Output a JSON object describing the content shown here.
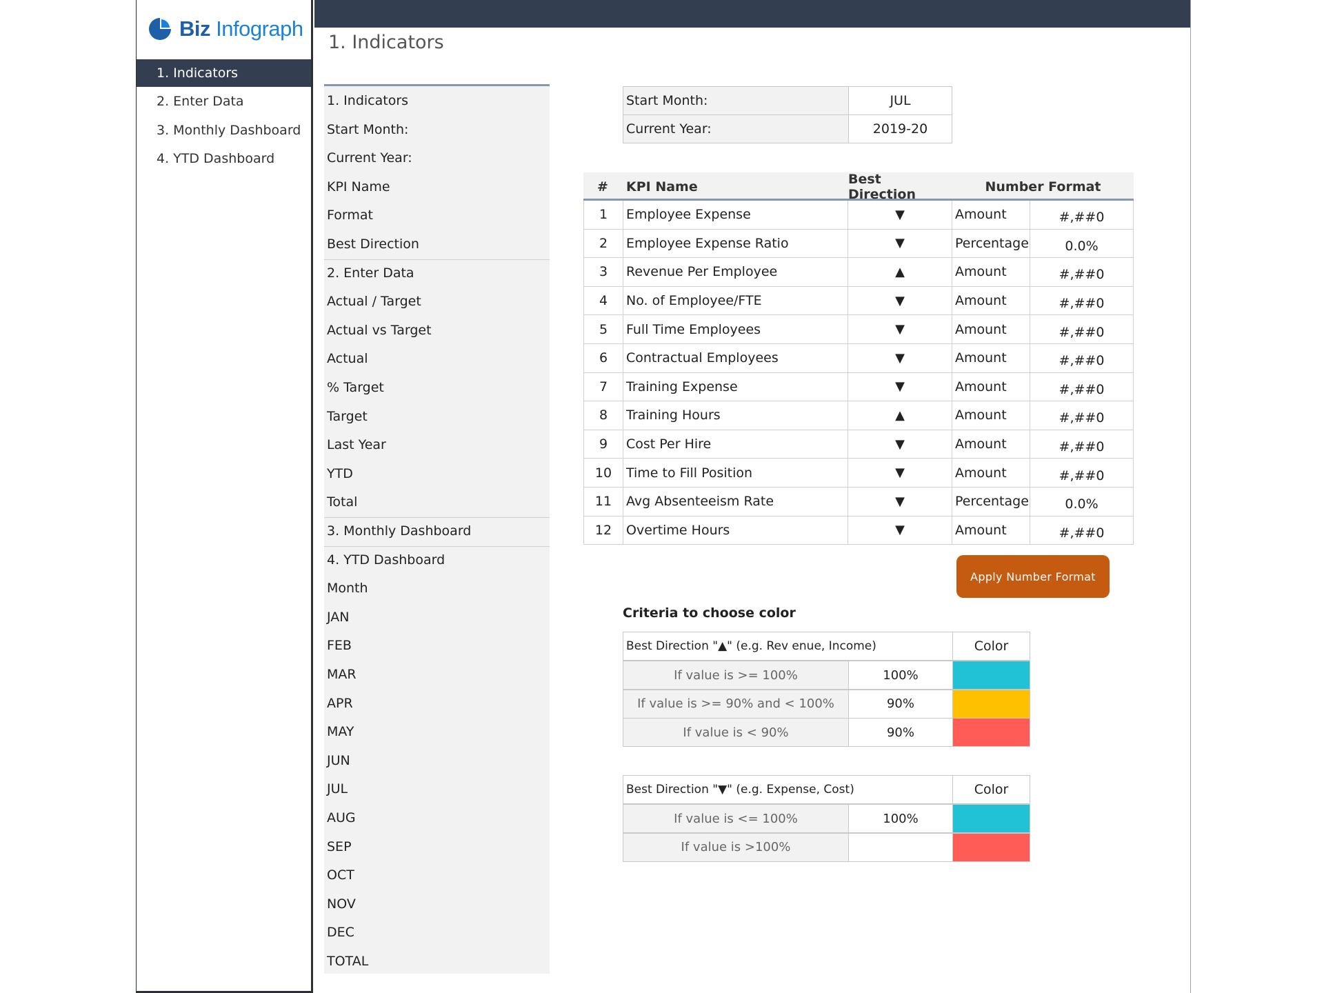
{
  "brand": {
    "part1": "Biz",
    "part2": "Infograph"
  },
  "nav": [
    {
      "label": "1. Indicators",
      "active": true
    },
    {
      "label": "2. Enter Data",
      "active": false
    },
    {
      "label": "3. Monthly Dashboard",
      "active": false
    },
    {
      "label": "4. YTD Dashboard",
      "active": false
    }
  ],
  "page_title": "1. Indicators",
  "index_list": [
    "1. Indicators",
    "Start Month:",
    "Current Year:",
    "KPI Name",
    "Format",
    "Best Direction",
    "2. Enter Data",
    "Actual / Target",
    "Actual vs Target",
    "Actual",
    "% Target",
    "Target",
    "Last Year",
    "YTD",
    "Total",
    "3. Monthly Dashboard",
    "4. YTD Dashboard",
    "Month",
    "JAN",
    "FEB",
    "MAR",
    "APR",
    "MAY",
    "JUN",
    "JUL",
    "AUG",
    "SEP",
    "OCT",
    "NOV",
    "DEC",
    "TOTAL"
  ],
  "settings": {
    "start_month_label": "Start Month:",
    "start_month_value": "JUL",
    "current_year_label": "Current Year:",
    "current_year_value": "2019-20"
  },
  "kpi_table": {
    "headers": {
      "num": "#",
      "name": "KPI Name",
      "direction": "Best Direction",
      "format": "Number Format"
    },
    "rows": [
      {
        "n": "1",
        "name": "Employee Expense",
        "dir": "▼",
        "type": "Amount",
        "fmt": "#,##0"
      },
      {
        "n": "2",
        "name": "Employee Expense Ratio",
        "dir": "▼",
        "type": "Percentage",
        "fmt": "0.0%"
      },
      {
        "n": "3",
        "name": "Revenue Per Employee",
        "dir": "▲",
        "type": "Amount",
        "fmt": "#,##0"
      },
      {
        "n": "4",
        "name": "No. of Employee/FTE",
        "dir": "▼",
        "type": "Amount",
        "fmt": "#,##0"
      },
      {
        "n": "5",
        "name": "Full Time Employees",
        "dir": "▼",
        "type": "Amount",
        "fmt": "#,##0"
      },
      {
        "n": "6",
        "name": "Contractual Employees",
        "dir": "▼",
        "type": "Amount",
        "fmt": "#,##0"
      },
      {
        "n": "7",
        "name": "Training Expense",
        "dir": "▼",
        "type": "Amount",
        "fmt": "#,##0"
      },
      {
        "n": "8",
        "name": "Training Hours",
        "dir": "▲",
        "type": "Amount",
        "fmt": "#,##0"
      },
      {
        "n": "9",
        "name": "Cost Per Hire",
        "dir": "▼",
        "type": "Amount",
        "fmt": "#,##0"
      },
      {
        "n": "10",
        "name": "Time to Fill Position",
        "dir": "▼",
        "type": "Amount",
        "fmt": "#,##0"
      },
      {
        "n": "11",
        "name": "Avg Absenteeism Rate",
        "dir": "▼",
        "type": "Percentage",
        "fmt": "0.0%"
      },
      {
        "n": "12",
        "name": "Overtime Hours",
        "dir": "▼",
        "type": "Amount",
        "fmt": "#,##0"
      }
    ]
  },
  "apply_button": "Apply Number Format",
  "criteria": {
    "title": "Criteria to choose color",
    "color_header": "Color",
    "up": {
      "header": "Best Direction \"▲\" (e.g. Rev enue, Income)",
      "rows": [
        {
          "cond": "If value is >= 100%",
          "pct": "100%",
          "color": "#21c2d6"
        },
        {
          "cond": "If value is >= 90% and < 100%",
          "pct": "90%",
          "color": "#ffc000"
        },
        {
          "cond": "If value is < 90%",
          "pct": "90%",
          "color": "#ff5b57"
        }
      ]
    },
    "down": {
      "header": "Best Direction \"▼\" (e.g. Expense, Cost)",
      "rows": [
        {
          "cond": "If value is <= 100%",
          "pct": "100%",
          "color": "#21c2d6"
        },
        {
          "cond": "If value is >100%",
          "pct": "",
          "color": "#ff5b57"
        }
      ]
    }
  },
  "colors": {
    "header_bg": "#333f50",
    "button": "#c55a11",
    "brand_dark": "#1f5fa8",
    "brand_light": "#1b82d8"
  }
}
